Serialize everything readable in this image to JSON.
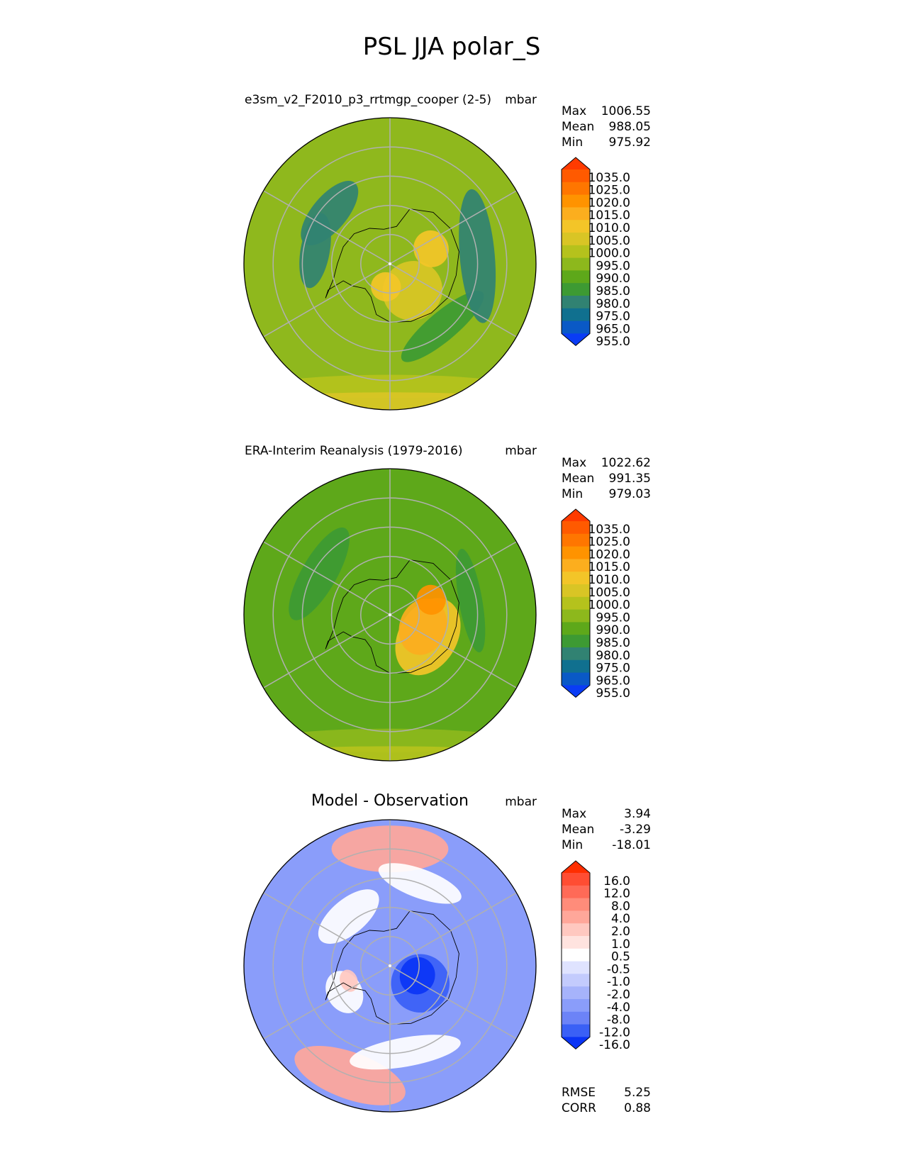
{
  "figure_title": "PSL JJA polar_S",
  "chart_data": [
    {
      "type": "heatmap",
      "projection": "south-polar-stereographic",
      "title": "e3sm_v2_F2010_p3_rrtmgp_cooper (2-5)",
      "units": "mbar",
      "stats": [
        {
          "label": "Max",
          "value": "1006.55"
        },
        {
          "label": "Mean",
          "value": "988.05"
        },
        {
          "label": "Min",
          "value": "975.92"
        }
      ],
      "colorbar": {
        "ticks": [
          "1035.0",
          "1025.0",
          "1020.0",
          "1015.0",
          "1010.0",
          "1005.0",
          "1000.0",
          "995.0",
          "990.0",
          "985.0",
          "980.0",
          "975.0",
          "965.0",
          "955.0"
        ],
        "colors": [
          "#ff3b00",
          "#ff5a00",
          "#ff7600",
          "#ff9300",
          "#fcae1e",
          "#f3c528",
          "#d9c525",
          "#b5c21c",
          "#8db81c",
          "#5ea81a",
          "#3d9a33",
          "#318272",
          "#10708f",
          "#0a59c6",
          "#0a3cf5"
        ],
        "extend": "both"
      },
      "field": {
        "background": "#8fb81d",
        "blobs": [
          {
            "lat": -78,
            "lon": 40,
            "rlat": 10,
            "rlon": 60,
            "color": "#d9c525"
          },
          {
            "lat": -82,
            "lon": -10,
            "rlat": 5,
            "rlon": 40,
            "color": "#f3c528"
          },
          {
            "lat": -75,
            "lon": 110,
            "rlat": 6,
            "rlon": 25,
            "color": "#f3c528"
          },
          {
            "lat": -62,
            "lon": 40,
            "rlat": 5,
            "rlon": 40,
            "color": "#3d9a33"
          },
          {
            "lat": -60,
            "lon": 95,
            "rlat": 6,
            "rlon": 50,
            "color": "#318272"
          },
          {
            "lat": -63,
            "lon": -130,
            "rlat": 6,
            "rlon": 30,
            "color": "#318272"
          },
          {
            "lat": -64,
            "lon": -100,
            "rlat": 5,
            "rlon": 30,
            "color": "#318272"
          },
          {
            "lat": -48,
            "lon": 0,
            "rlat": 4,
            "rlon": 180,
            "color": "#b5c21c"
          },
          {
            "lat": -43,
            "lon": 0,
            "rlat": 3,
            "rlon": 180,
            "color": "#d9c525"
          }
        ]
      }
    },
    {
      "type": "heatmap",
      "projection": "south-polar-stereographic",
      "title": "ERA-Interim Reanalysis (1979-2016)",
      "units": "mbar",
      "stats": [
        {
          "label": "Max",
          "value": "1022.62"
        },
        {
          "label": "Mean",
          "value": "991.35"
        },
        {
          "label": "Min",
          "value": "979.03"
        }
      ],
      "colorbar": {
        "ticks": [
          "1035.0",
          "1025.0",
          "1020.0",
          "1015.0",
          "1010.0",
          "1005.0",
          "1000.0",
          "995.0",
          "990.0",
          "985.0",
          "980.0",
          "975.0",
          "965.0",
          "955.0"
        ],
        "colors": [
          "#ff3b00",
          "#ff5a00",
          "#ff7600",
          "#ff9300",
          "#fcae1e",
          "#f3c528",
          "#d9c525",
          "#b5c21c",
          "#8db81c",
          "#5ea81a",
          "#3d9a33",
          "#318272",
          "#10708f",
          "#0a59c6",
          "#0a3cf5"
        ],
        "extend": "both"
      },
      "field": {
        "background": "#5ea81a",
        "blobs": [
          {
            "lat": -75,
            "lon": 60,
            "rlat": 10,
            "rlon": 70,
            "color": "#f3c528"
          },
          {
            "lat": -78,
            "lon": 70,
            "rlat": 8,
            "rlon": 55,
            "color": "#fcae1e"
          },
          {
            "lat": -75,
            "lon": 110,
            "rlat": 5,
            "rlon": 20,
            "color": "#ff9300"
          },
          {
            "lat": -62,
            "lon": -120,
            "rlat": 6,
            "rlon": 40,
            "color": "#3d9a33"
          },
          {
            "lat": -62,
            "lon": 100,
            "rlat": 4,
            "rlon": 40,
            "color": "#3d9a33"
          },
          {
            "lat": -47,
            "lon": 0,
            "rlat": 4,
            "rlon": 180,
            "color": "#8db81c"
          },
          {
            "lat": -42,
            "lon": 0,
            "rlat": 3,
            "rlon": 180,
            "color": "#b5c21c"
          }
        ]
      }
    },
    {
      "type": "heatmap",
      "projection": "south-polar-stereographic",
      "title": "Model - Observation",
      "units": "mbar",
      "stats": [
        {
          "label": "Max",
          "value": "3.94"
        },
        {
          "label": "Mean",
          "value": "-3.29"
        },
        {
          "label": "Min",
          "value": "-18.01"
        }
      ],
      "extra_stats": [
        {
          "label": "RMSE",
          "value": "5.25"
        },
        {
          "label": "CORR",
          "value": "0.88"
        }
      ],
      "colorbar": {
        "ticks": [
          "16.0",
          "12.0",
          "8.0",
          "4.0",
          "2.0",
          "1.0",
          "0.5",
          "-0.5",
          "-1.0",
          "-2.0",
          "-4.0",
          "-8.0",
          "-12.0",
          "-16.0"
        ],
        "colors": [
          "#ff2e00",
          "#ff4d33",
          "#ff6a57",
          "#ff8c7a",
          "#ffa79a",
          "#ffc8c0",
          "#ffe3df",
          "#ffffff",
          "#dfe3ff",
          "#c3cbfd",
          "#a6b3fb",
          "#8a9dfa",
          "#6c83f7",
          "#3a60f6",
          "#0a34f5"
        ],
        "extend": "both"
      },
      "field": {
        "background": "#8a9dfa",
        "blobs": [
          {
            "lat": -78,
            "lon": 60,
            "rlat": 10,
            "rlon": 55,
            "color": "#3a60f6"
          },
          {
            "lat": -80,
            "lon": 70,
            "rlat": 6,
            "rlon": 40,
            "color": "#0a34f5"
          },
          {
            "lat": -50,
            "lon": 180,
            "rlat": 8,
            "rlon": 30,
            "color": "#ffa79a"
          },
          {
            "lat": -50,
            "lon": -20,
            "rlat": 8,
            "rlon": 30,
            "color": "#ffa79a"
          },
          {
            "lat": -72,
            "lon": -60,
            "rlat": 6,
            "rlon": 25,
            "color": "#ffffff"
          },
          {
            "lat": -68,
            "lon": -140,
            "rlat": 6,
            "rlon": 35,
            "color": "#ffffff"
          },
          {
            "lat": -60,
            "lon": 10,
            "rlat": 5,
            "rlon": 40,
            "color": "#ffffff"
          },
          {
            "lat": -60,
            "lon": 160,
            "rlat": 5,
            "rlon": 30,
            "color": "#ffffff"
          },
          {
            "lat": -75,
            "lon": -70,
            "rlat": 3,
            "rlon": 15,
            "color": "#ffc8c0"
          }
        ]
      }
    }
  ]
}
